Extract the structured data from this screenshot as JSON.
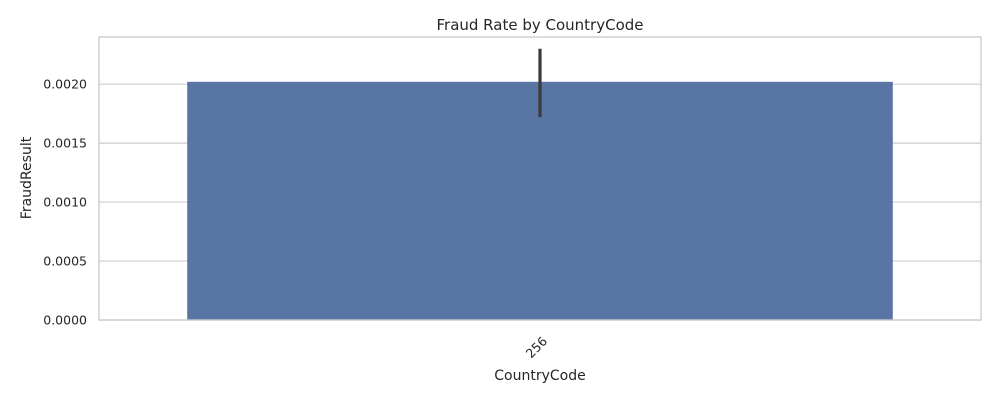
{
  "chart_data": {
    "type": "bar",
    "title": "Fraud Rate by CountryCode",
    "xlabel": "CountryCode",
    "ylabel": "FraudResult",
    "categories": [
      "256"
    ],
    "values": [
      0.00202
    ],
    "error_bars": [
      {
        "low": 0.00172,
        "high": 0.0023
      }
    ],
    "yticks": [
      "0.0000",
      "0.0005",
      "0.0010",
      "0.0015",
      "0.0020"
    ],
    "ytick_values": [
      0,
      0.0005,
      0.001,
      0.0015,
      0.002
    ],
    "ylim": [
      0,
      0.0024
    ],
    "grid": true,
    "colors": {
      "bar": "#5975a4",
      "errorbar": "#3a3a3a"
    }
  }
}
